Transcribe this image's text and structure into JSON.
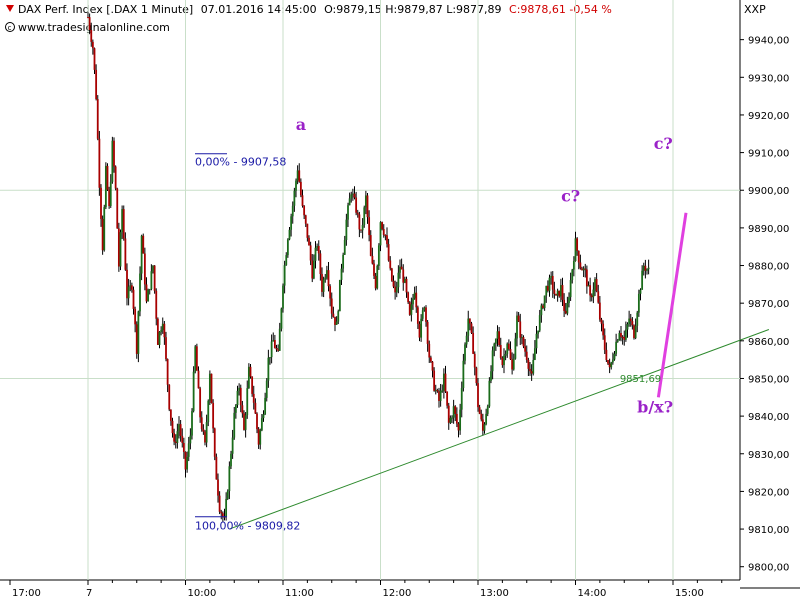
{
  "header": {
    "prefix": "DAX Perf. Index [.DAX  1 Minute]",
    "date_time": "07.01.2016 14:45:00",
    "ohlc": "O:9879,15 H:9879,87 L:9877,89",
    "close": "C:9878,61 -0,54 %",
    "source": "www.tradesignalonline.com",
    "symbol": "XXP"
  },
  "colors": {
    "up_candle": "#1a6b1a",
    "down_candle": "#a80000",
    "grid": "#c9dfc9",
    "trendline": "#2e8a2e",
    "projection": "#e040e0",
    "wave_label": "#9a22c8",
    "fib": "#1a1aa6"
  },
  "chart_data": {
    "type": "candlestick",
    "y_axis": {
      "range": [
        9797,
        9950
      ],
      "ticks": [
        "9800,00",
        "9810,00",
        "9820,00",
        "9830,00",
        "9840,00",
        "9850,00",
        "9860,00",
        "9870,00",
        "9880,00",
        "9890,00",
        "9900,00",
        "9910,00",
        "9920,00",
        "9930,00",
        "9940,00"
      ]
    },
    "x_axis": {
      "range": [
        "17:00",
        "15:20"
      ],
      "ticks": [
        {
          "label": "17:00",
          "t": "17:00"
        },
        {
          "label": "7",
          "t": "09:00"
        },
        {
          "label": "10:00",
          "t": "10:00"
        },
        {
          "label": "11:00",
          "t": "11:00"
        },
        {
          "label": "12:00",
          "t": "12:00"
        },
        {
          "label": "13:00",
          "t": "13:00"
        },
        {
          "label": "14:00",
          "t": "14:00"
        },
        {
          "label": "15:00",
          "t": "15:00"
        }
      ]
    },
    "price_path": [
      [
        "09:00",
        9946
      ],
      [
        "09:03",
        9938
      ],
      [
        "09:05",
        9925
      ],
      [
        "09:07",
        9902
      ],
      [
        "09:09",
        9885
      ],
      [
        "09:11",
        9905
      ],
      [
        "09:13",
        9895
      ],
      [
        "09:15",
        9912
      ],
      [
        "09:17",
        9900
      ],
      [
        "09:19",
        9880
      ],
      [
        "09:21",
        9895
      ],
      [
        "09:24",
        9872
      ],
      [
        "09:27",
        9875
      ],
      [
        "09:30",
        9858
      ],
      [
        "09:33",
        9888
      ],
      [
        "09:36",
        9870
      ],
      [
        "09:40",
        9880
      ],
      [
        "09:43",
        9860
      ],
      [
        "09:46",
        9866
      ],
      [
        "09:50",
        9843
      ],
      [
        "09:53",
        9832
      ],
      [
        "09:56",
        9838
      ],
      [
        "10:00",
        9826
      ],
      [
        "10:03",
        9835
      ],
      [
        "10:06",
        9858
      ],
      [
        "10:09",
        9840
      ],
      [
        "10:12",
        9832
      ],
      [
        "10:15",
        9852
      ],
      [
        "10:18",
        9828
      ],
      [
        "10:21",
        9816
      ],
      [
        "10:24",
        9812
      ],
      [
        "10:27",
        9826
      ],
      [
        "10:30",
        9840
      ],
      [
        "10:33",
        9848
      ],
      [
        "10:36",
        9836
      ],
      [
        "10:39",
        9852
      ],
      [
        "10:42",
        9844
      ],
      [
        "10:45",
        9833
      ],
      [
        "10:48",
        9842
      ],
      [
        "10:51",
        9855
      ],
      [
        "10:54",
        9860
      ],
      [
        "10:57",
        9856
      ],
      [
        "11:00",
        9876
      ],
      [
        "11:03",
        9888
      ],
      [
        "11:06",
        9896
      ],
      [
        "11:09",
        9906
      ],
      [
        "11:12",
        9895
      ],
      [
        "11:15",
        9888
      ],
      [
        "11:18",
        9878
      ],
      [
        "11:21",
        9886
      ],
      [
        "11:24",
        9874
      ],
      [
        "11:27",
        9880
      ],
      [
        "11:30",
        9868
      ],
      [
        "11:33",
        9864
      ],
      [
        "11:36",
        9880
      ],
      [
        "11:39",
        9892
      ],
      [
        "11:42",
        9900
      ],
      [
        "11:45",
        9895
      ],
      [
        "11:48",
        9888
      ],
      [
        "11:51",
        9898
      ],
      [
        "11:54",
        9882
      ],
      [
        "11:57",
        9875
      ],
      [
        "12:00",
        9892
      ],
      [
        "12:03",
        9888
      ],
      [
        "12:06",
        9878
      ],
      [
        "12:09",
        9872
      ],
      [
        "12:12",
        9880
      ],
      [
        "12:15",
        9875
      ],
      [
        "12:18",
        9866
      ],
      [
        "12:21",
        9874
      ],
      [
        "12:24",
        9862
      ],
      [
        "12:27",
        9870
      ],
      [
        "12:30",
        9856
      ],
      [
        "12:33",
        9848
      ],
      [
        "12:36",
        9844
      ],
      [
        "12:39",
        9850
      ],
      [
        "12:42",
        9838
      ],
      [
        "12:45",
        9842
      ],
      [
        "12:48",
        9836
      ],
      [
        "12:51",
        9855
      ],
      [
        "12:54",
        9866
      ],
      [
        "12:57",
        9858
      ],
      [
        "13:00",
        9843
      ],
      [
        "13:03",
        9836
      ],
      [
        "13:06",
        9844
      ],
      [
        "13:09",
        9856
      ],
      [
        "13:12",
        9862
      ],
      [
        "13:15",
        9854
      ],
      [
        "13:18",
        9860
      ],
      [
        "13:21",
        9852
      ],
      [
        "13:24",
        9866
      ],
      [
        "13:27",
        9860
      ],
      [
        "13:30",
        9856
      ],
      [
        "13:33",
        9850
      ],
      [
        "13:36",
        9862
      ],
      [
        "13:39",
        9868
      ],
      [
        "13:42",
        9874
      ],
      [
        "13:45",
        9876
      ],
      [
        "13:48",
        9871
      ],
      [
        "13:51",
        9874
      ],
      [
        "13:54",
        9866
      ],
      [
        "13:57",
        9876
      ],
      [
        "14:00",
        9886
      ],
      [
        "14:03",
        9880
      ],
      [
        "14:06",
        9878
      ],
      [
        "14:09",
        9871
      ],
      [
        "14:12",
        9876
      ],
      [
        "14:15",
        9866
      ],
      [
        "14:18",
        9858
      ],
      [
        "14:21",
        9852
      ],
      [
        "14:24",
        9858
      ],
      [
        "14:27",
        9863
      ],
      [
        "14:30",
        9860
      ],
      [
        "14:33",
        9866
      ],
      [
        "14:36",
        9862
      ],
      [
        "14:39",
        9872
      ],
      [
        "14:42",
        9880
      ],
      [
        "14:45",
        9878.61
      ]
    ],
    "annotations": {
      "fib_top": {
        "label": "0,00% - 9907,58",
        "t": "10:20",
        "y": 9907.58
      },
      "fib_bottom": {
        "label": "100,00% - 9809,82",
        "t": "10:20",
        "y": 9809.82
      },
      "wave_a": {
        "label": "a",
        "t": "11:11",
        "y": 9916
      },
      "wave_c1": {
        "label": "c?",
        "t": "13:57",
        "y": 9897
      },
      "wave_c2": {
        "label": "c?",
        "t": "14:54",
        "y": 9911
      },
      "wave_bx": {
        "label": "b/x?",
        "t": "14:49",
        "y": 9841
      },
      "trend_level": {
        "label": "9851,69",
        "t": "14:40",
        "y": 9849
      }
    },
    "trendline": [
      [
        "10:27",
        9810
      ],
      [
        "15:59",
        9863
      ]
    ],
    "projection": [
      [
        "14:51",
        9845
      ],
      [
        "15:08",
        9894
      ]
    ],
    "grid": true
  }
}
